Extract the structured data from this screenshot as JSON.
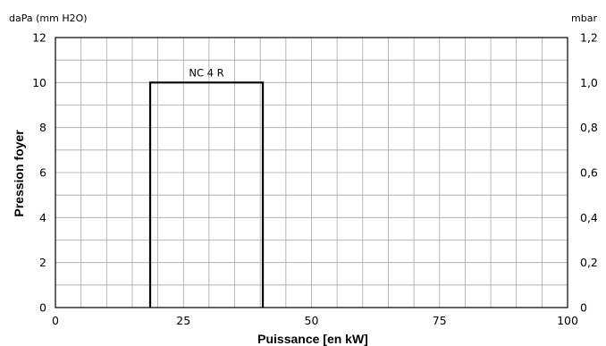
{
  "chart_data": {
    "type": "line",
    "xlabel": "Puissance [en kW]",
    "ylabel": "Pression foyer",
    "y_left_unit": "daPa (mm H2O)",
    "y_right_unit": "mbar",
    "xlim": [
      0,
      100
    ],
    "ylim": [
      0,
      12
    ],
    "x_ticks": [
      "0",
      "25",
      "50",
      "75",
      "100"
    ],
    "y_left_ticks": [
      "0",
      "2",
      "4",
      "6",
      "8",
      "10",
      "12"
    ],
    "y_right_ticks": [
      "0",
      "0,2",
      "0,4",
      "0,6",
      "0,8",
      "1,0",
      "1,2"
    ],
    "grid": true,
    "series": [
      {
        "name": "NC 4 R",
        "x": [
          18.5,
          18.5,
          40.5,
          40.5
        ],
        "y": [
          0,
          10,
          10,
          0
        ]
      }
    ]
  }
}
